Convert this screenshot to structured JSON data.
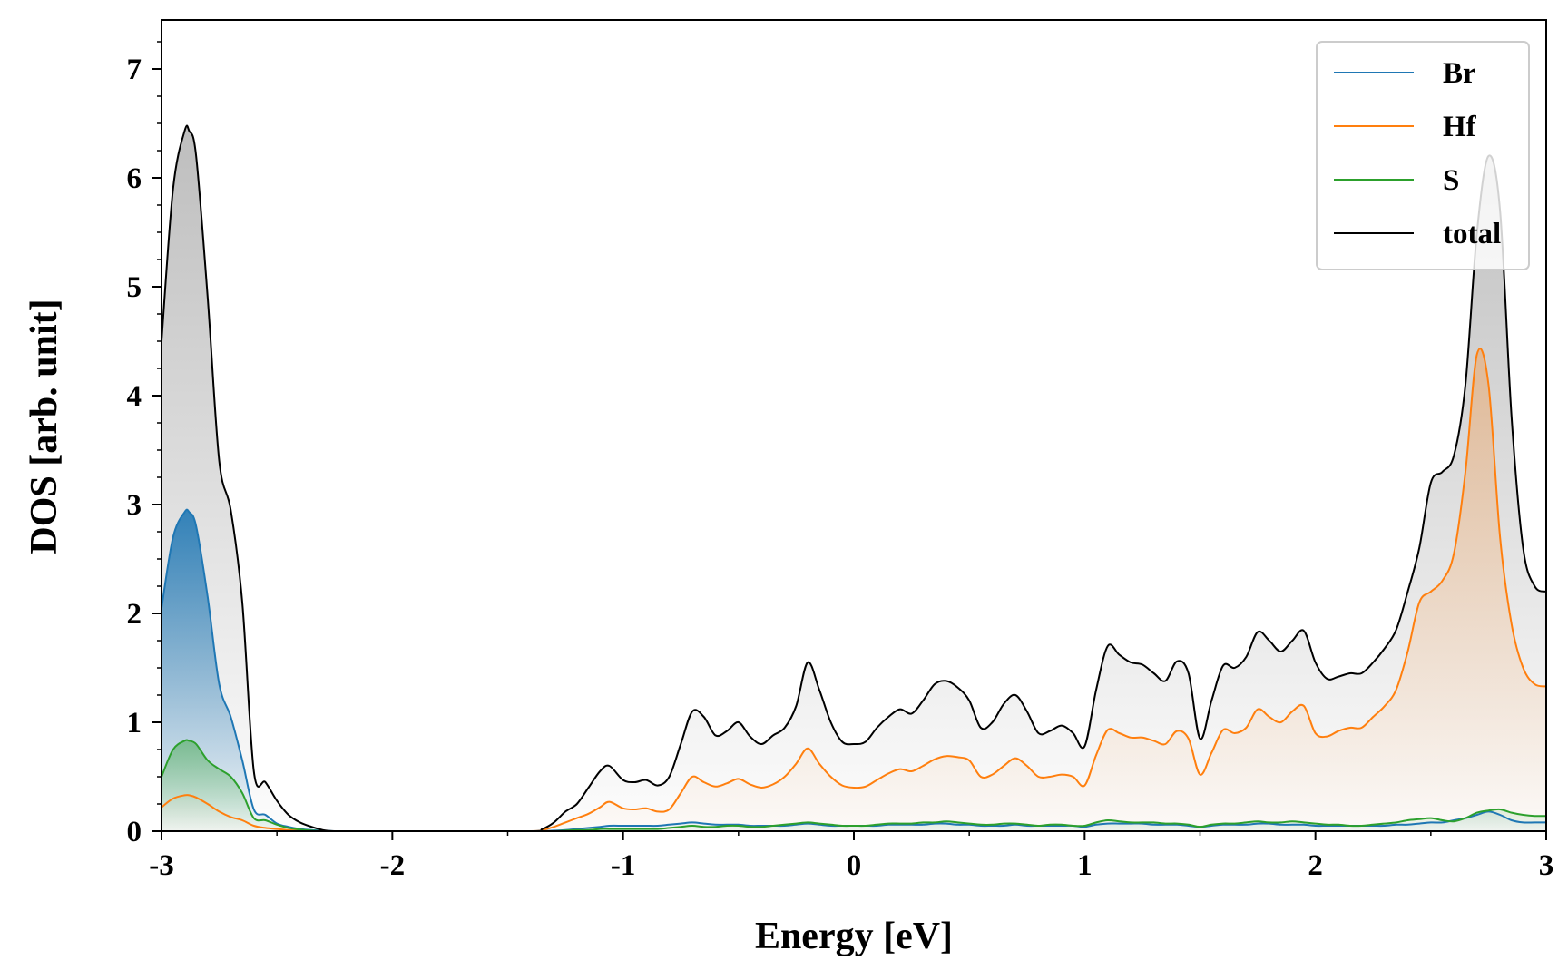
{
  "chart_data": {
    "type": "line",
    "title": "",
    "xlabel": "Energy [eV]",
    "ylabel": "DOS [arb. unit]",
    "xlim": [
      -3,
      3
    ],
    "ylim": [
      0,
      7.45
    ],
    "xticks": [
      -3,
      -2,
      -1,
      0,
      1,
      2,
      3
    ],
    "xtick_labels": [
      "-3",
      "-2",
      "-1",
      "0",
      "1",
      "2",
      "3"
    ],
    "yticks": [
      0,
      1,
      2,
      3,
      4,
      5,
      6,
      7
    ],
    "ytick_labels": [
      "0",
      "1",
      "2",
      "3",
      "4",
      "5",
      "6",
      "7"
    ],
    "grid": false,
    "legend_position": "top-right",
    "x": [
      -3.0,
      -2.95,
      -2.9,
      -2.88,
      -2.85,
      -2.8,
      -2.75,
      -2.7,
      -2.65,
      -2.6,
      -2.55,
      -2.5,
      -2.45,
      -2.4,
      -2.35,
      -2.3,
      -2.25,
      -2.2,
      -1.8,
      -1.4,
      -1.35,
      -1.3,
      -1.25,
      -1.2,
      -1.15,
      -1.1,
      -1.06,
      -1.0,
      -0.95,
      -0.9,
      -0.85,
      -0.8,
      -0.75,
      -0.7,
      -0.65,
      -0.6,
      -0.55,
      -0.5,
      -0.45,
      -0.4,
      -0.35,
      -0.3,
      -0.25,
      -0.2,
      -0.15,
      -0.1,
      -0.05,
      0.0,
      0.05,
      0.1,
      0.15,
      0.2,
      0.25,
      0.3,
      0.35,
      0.4,
      0.45,
      0.5,
      0.55,
      0.6,
      0.65,
      0.7,
      0.75,
      0.8,
      0.85,
      0.9,
      0.95,
      1.0,
      1.05,
      1.1,
      1.15,
      1.2,
      1.25,
      1.3,
      1.35,
      1.4,
      1.45,
      1.5,
      1.55,
      1.6,
      1.65,
      1.7,
      1.75,
      1.8,
      1.85,
      1.9,
      1.95,
      2.0,
      2.05,
      2.1,
      2.15,
      2.2,
      2.25,
      2.3,
      2.35,
      2.4,
      2.45,
      2.5,
      2.55,
      2.6,
      2.65,
      2.7,
      2.75,
      2.8,
      2.85,
      2.9,
      2.95,
      3.0
    ],
    "series": [
      {
        "name": "Br",
        "color": "#1f77b4",
        "values": [
          2.05,
          2.7,
          2.93,
          2.93,
          2.8,
          2.15,
          1.35,
          1.05,
          0.65,
          0.2,
          0.15,
          0.07,
          0.04,
          0.02,
          0.01,
          0.005,
          0,
          0,
          0,
          0,
          0,
          0.005,
          0.01,
          0.02,
          0.03,
          0.04,
          0.05,
          0.05,
          0.05,
          0.05,
          0.05,
          0.06,
          0.07,
          0.08,
          0.07,
          0.06,
          0.06,
          0.06,
          0.05,
          0.05,
          0.05,
          0.05,
          0.06,
          0.07,
          0.06,
          0.05,
          0.05,
          0.05,
          0.05,
          0.05,
          0.06,
          0.06,
          0.06,
          0.06,
          0.07,
          0.07,
          0.06,
          0.06,
          0.05,
          0.05,
          0.05,
          0.06,
          0.05,
          0.05,
          0.05,
          0.05,
          0.05,
          0.04,
          0.06,
          0.07,
          0.07,
          0.07,
          0.07,
          0.06,
          0.06,
          0.06,
          0.05,
          0.04,
          0.05,
          0.06,
          0.06,
          0.06,
          0.07,
          0.07,
          0.06,
          0.06,
          0.06,
          0.05,
          0.05,
          0.05,
          0.05,
          0.05,
          0.05,
          0.05,
          0.06,
          0.06,
          0.07,
          0.08,
          0.08,
          0.1,
          0.12,
          0.15,
          0.18,
          0.15,
          0.1,
          0.08,
          0.08,
          0.08
        ]
      },
      {
        "name": "Hf",
        "color": "#ff7f0e",
        "values": [
          0.22,
          0.3,
          0.33,
          0.33,
          0.31,
          0.25,
          0.18,
          0.13,
          0.1,
          0.05,
          0.03,
          0.02,
          0.01,
          0.005,
          0,
          0,
          0,
          0,
          0,
          0,
          0.01,
          0.04,
          0.08,
          0.12,
          0.16,
          0.22,
          0.27,
          0.21,
          0.2,
          0.21,
          0.18,
          0.2,
          0.35,
          0.5,
          0.45,
          0.41,
          0.44,
          0.48,
          0.43,
          0.4,
          0.43,
          0.5,
          0.62,
          0.76,
          0.62,
          0.5,
          0.42,
          0.4,
          0.41,
          0.47,
          0.53,
          0.57,
          0.55,
          0.6,
          0.66,
          0.69,
          0.68,
          0.65,
          0.5,
          0.52,
          0.6,
          0.67,
          0.6,
          0.5,
          0.5,
          0.52,
          0.5,
          0.42,
          0.7,
          0.93,
          0.9,
          0.86,
          0.86,
          0.83,
          0.8,
          0.92,
          0.85,
          0.52,
          0.72,
          0.93,
          0.9,
          0.95,
          1.12,
          1.05,
          1.0,
          1.1,
          1.15,
          0.9,
          0.87,
          0.92,
          0.95,
          0.95,
          1.05,
          1.15,
          1.3,
          1.65,
          2.1,
          2.2,
          2.3,
          2.55,
          3.3,
          4.38,
          4.1,
          2.7,
          1.9,
          1.5,
          1.35,
          1.33
        ]
      },
      {
        "name": "S",
        "color": "#2ca02c",
        "values": [
          0.5,
          0.75,
          0.83,
          0.83,
          0.8,
          0.65,
          0.57,
          0.5,
          0.35,
          0.12,
          0.1,
          0.06,
          0.03,
          0.015,
          0.005,
          0,
          0,
          0,
          0,
          0,
          0,
          0,
          0.005,
          0.01,
          0.01,
          0.02,
          0.02,
          0.02,
          0.02,
          0.02,
          0.02,
          0.03,
          0.04,
          0.05,
          0.04,
          0.04,
          0.05,
          0.05,
          0.04,
          0.04,
          0.05,
          0.06,
          0.07,
          0.08,
          0.07,
          0.06,
          0.05,
          0.05,
          0.05,
          0.06,
          0.07,
          0.07,
          0.07,
          0.08,
          0.08,
          0.09,
          0.08,
          0.07,
          0.06,
          0.06,
          0.07,
          0.07,
          0.06,
          0.05,
          0.06,
          0.06,
          0.05,
          0.05,
          0.08,
          0.1,
          0.09,
          0.08,
          0.08,
          0.08,
          0.07,
          0.07,
          0.06,
          0.04,
          0.06,
          0.07,
          0.07,
          0.08,
          0.09,
          0.08,
          0.08,
          0.09,
          0.08,
          0.07,
          0.06,
          0.06,
          0.05,
          0.05,
          0.06,
          0.07,
          0.08,
          0.1,
          0.11,
          0.12,
          0.1,
          0.09,
          0.12,
          0.17,
          0.19,
          0.2,
          0.17,
          0.15,
          0.14,
          0.14
        ]
      },
      {
        "name": "total",
        "color": "#000000",
        "values": [
          4.5,
          5.9,
          6.43,
          6.43,
          6.2,
          4.9,
          3.4,
          2.95,
          2.1,
          0.55,
          0.45,
          0.28,
          0.15,
          0.08,
          0.04,
          0.01,
          0,
          0,
          0,
          0,
          0.02,
          0.08,
          0.18,
          0.25,
          0.4,
          0.55,
          0.6,
          0.47,
          0.45,
          0.47,
          0.42,
          0.5,
          0.8,
          1.1,
          1.05,
          0.88,
          0.92,
          1.0,
          0.87,
          0.8,
          0.88,
          0.95,
          1.15,
          1.55,
          1.3,
          1.0,
          0.82,
          0.8,
          0.82,
          0.95,
          1.05,
          1.12,
          1.08,
          1.2,
          1.35,
          1.38,
          1.32,
          1.2,
          0.95,
          1.0,
          1.17,
          1.25,
          1.1,
          0.9,
          0.92,
          0.97,
          0.9,
          0.78,
          1.3,
          1.7,
          1.62,
          1.55,
          1.53,
          1.45,
          1.38,
          1.56,
          1.45,
          0.85,
          1.2,
          1.52,
          1.5,
          1.6,
          1.83,
          1.75,
          1.65,
          1.75,
          1.84,
          1.55,
          1.4,
          1.42,
          1.45,
          1.45,
          1.55,
          1.68,
          1.85,
          2.2,
          2.6,
          3.2,
          3.3,
          3.45,
          4.1,
          5.5,
          6.2,
          5.7,
          3.8,
          2.6,
          2.25,
          2.2
        ]
      }
    ]
  }
}
